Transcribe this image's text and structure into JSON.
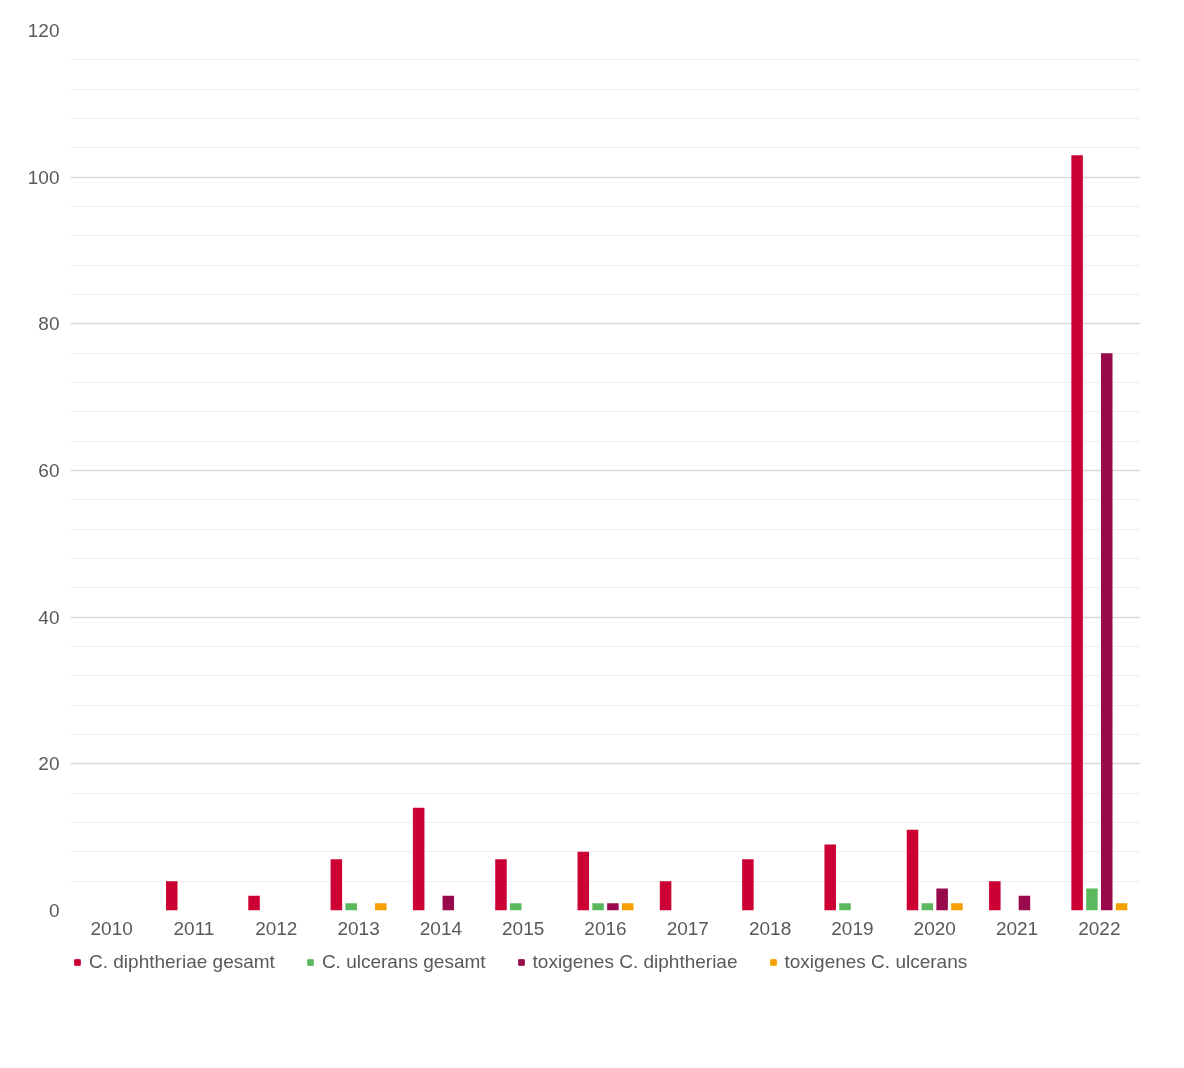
{
  "chart_data": {
    "type": "bar",
    "categories": [
      "2010",
      "2011",
      "2012",
      "2013",
      "2014",
      "2015",
      "2016",
      "2017",
      "2018",
      "2019",
      "2020",
      "2021",
      "2022"
    ],
    "series": [
      {
        "name": "C. diphtheriae gesamt",
        "color": "#cc0033",
        "values": [
          0,
          4,
          2,
          7,
          14,
          7,
          8,
          4,
          7,
          9,
          11,
          4,
          103
        ]
      },
      {
        "name": "C. ulcerans gesamt",
        "color": "#5cb85c",
        "values": [
          0,
          0,
          0,
          1,
          0,
          1,
          1,
          0,
          0,
          1,
          1,
          0,
          3
        ]
      },
      {
        "name": "toxigenes C. diphtheriae",
        "color": "#990a4c",
        "values": [
          0,
          0,
          0,
          0,
          2,
          0,
          1,
          0,
          0,
          0,
          3,
          2,
          76
        ]
      },
      {
        "name": "toxigenes C. ulcerans",
        "color": "#f59f00",
        "values": [
          0,
          0,
          0,
          1,
          0,
          0,
          1,
          0,
          0,
          0,
          1,
          0,
          1
        ]
      }
    ],
    "ylim": [
      0,
      120
    ],
    "yticks": [
      0,
      20,
      40,
      60,
      80,
      100,
      120
    ],
    "grid": "y",
    "legend": "bottom"
  }
}
